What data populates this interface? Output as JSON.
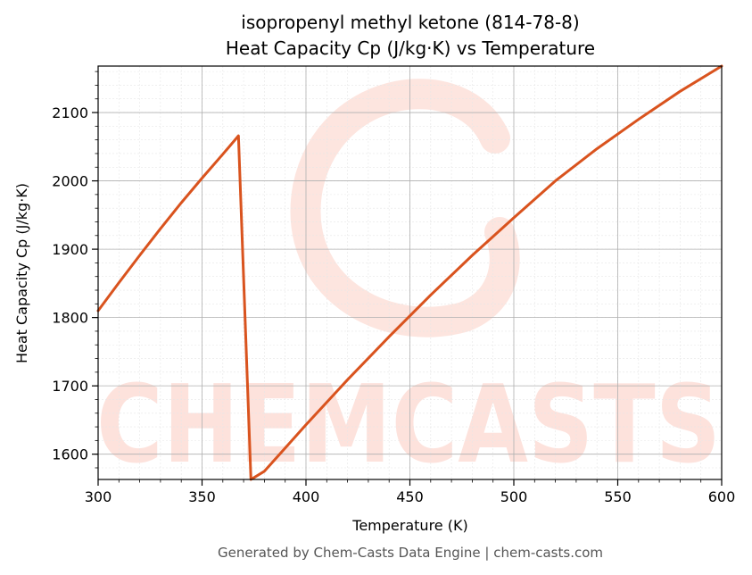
{
  "chart_data": {
    "type": "line",
    "title_line1": "isopropenyl methyl ketone (814-78-8)",
    "title_line2": "Heat Capacity Cp (J/kg·K) vs Temperature",
    "xlabel": "Temperature (K)",
    "ylabel": "Heat Capacity Cp (J/kg·K)",
    "xlim": [
      300,
      600
    ],
    "ylim": [
      1563,
      2168
    ],
    "xticks": [
      300,
      350,
      400,
      450,
      500,
      550,
      600
    ],
    "yticks": [
      1600,
      1700,
      1800,
      1900,
      2000,
      2100
    ],
    "grid": true,
    "line_color": "#d9531e",
    "series": [
      {
        "x": [
          300,
          310,
          320,
          330,
          340,
          350,
          360,
          367.5,
          373.5,
          380,
          400,
          420,
          440,
          460,
          480,
          500,
          520,
          540,
          560,
          580,
          600
        ],
        "y": [
          1810,
          1851,
          1891,
          1930,
          1968,
          2004,
          2039,
          2066,
          1563,
          1575,
          1643,
          1709,
          1772,
          1833,
          1891,
          1946,
          2000,
          2047,
          2090,
          2131,
          2168
        ]
      }
    ]
  },
  "watermark": {
    "text": "CHEMCASTS",
    "color": "#fde2dc"
  },
  "footer": "Generated by Chem-Casts Data Engine | chem-casts.com"
}
